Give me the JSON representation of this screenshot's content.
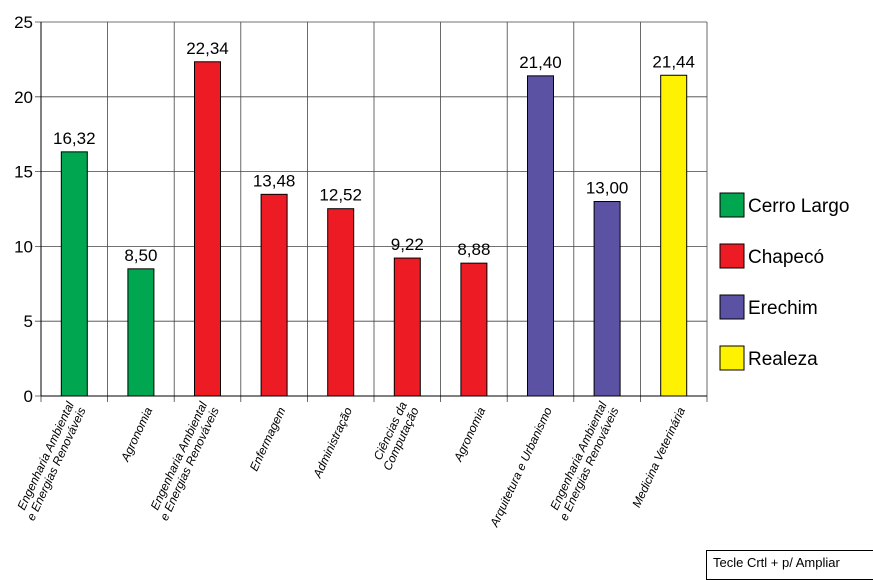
{
  "chart_data": {
    "type": "bar",
    "title": "",
    "xlabel": "",
    "ylabel": "",
    "ylim": [
      0,
      25
    ],
    "yticks": [
      "0",
      "5",
      "10",
      "15",
      "20",
      "25"
    ],
    "grid": true,
    "legend_position": "right",
    "categories": [
      "Engenharia Ambiental e Energias Renováveis",
      "Agronomia",
      "Engenharia Ambiental e Energias Renováveis",
      "Enfermagem",
      "Administração",
      "Ciências da Computação",
      "Agronomia",
      "Arquitetura e Urbanismo",
      "Engenharia Ambiental e Energias Renováveis",
      "Medicina Veterinária"
    ],
    "category_label_lines": [
      [
        "Engenharia Ambiental",
        "e Energias Renováveis"
      ],
      [
        "Agronomia"
      ],
      [
        "Engenharia Ambiental",
        "e Energias Renováveis"
      ],
      [
        "Enfermagem"
      ],
      [
        "Administração"
      ],
      [
        "Ciências da",
        "Computação"
      ],
      [
        "Agronomia"
      ],
      [
        "Arquitetura e Urbanismo"
      ],
      [
        "Engenharia Ambiental",
        "e Energias Renováveis"
      ],
      [
        "Medicina Veterinária"
      ]
    ],
    "values": [
      16.32,
      8.5,
      22.34,
      13.48,
      12.52,
      9.22,
      8.88,
      21.4,
      13.0,
      21.44
    ],
    "value_labels": [
      "16,32",
      "8,50",
      "22,34",
      "13,48",
      "12,52",
      "9,22",
      "8,88",
      "21,40",
      "13,00",
      "21,44"
    ],
    "bar_groups": [
      "Cerro Largo",
      "Cerro Largo",
      "Chapecó",
      "Chapecó",
      "Chapecó",
      "Chapecó",
      "Chapecó",
      "Erechim",
      "Erechim",
      "Realeza"
    ],
    "series": [
      {
        "name": "Cerro Largo",
        "color": "#00a650"
      },
      {
        "name": "Chapecó",
        "color": "#ed1c24"
      },
      {
        "name": "Erechim",
        "color": "#5b52a3"
      },
      {
        "name": "Realeza",
        "color": "#fff200"
      }
    ]
  },
  "footer": {
    "hint": "Tecle Crtl + p/ Ampliar"
  }
}
